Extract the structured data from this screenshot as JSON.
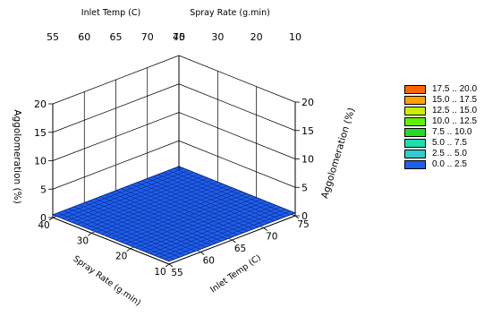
{
  "chart_data": {
    "type": "surface3d",
    "title": "",
    "zlabel": "Aggolomeration (%)",
    "x_axis": {
      "label": "Inlet Temp (C)",
      "range": [
        55,
        75
      ],
      "ticks": [
        55,
        60,
        65,
        70,
        75
      ],
      "tick_labels_top": [
        "55",
        "60",
        "65",
        "70",
        "75"
      ],
      "tick_labels_bottom": [
        "55",
        "60",
        "65",
        "70",
        "75"
      ]
    },
    "y_axis": {
      "label": "Spray Rate (g/min)",
      "top_label": "Spray Rate (g.min)",
      "bottom_label": "Spray Rate (g.min)",
      "range": [
        10,
        40
      ],
      "ticks": [
        10,
        20,
        30,
        40
      ],
      "tick_labels_top": [
        "40",
        "30",
        "20",
        "10"
      ],
      "tick_labels_bottom": [
        "40",
        "30",
        "20",
        "10"
      ]
    },
    "z_axis": {
      "range": [
        0,
        20
      ],
      "ticks": [
        0,
        5,
        10,
        15,
        20
      ],
      "tick_labels": [
        "0",
        "5",
        "10",
        "15",
        "20"
      ]
    },
    "surface": {
      "x_values": [
        55,
        75
      ],
      "y_values": [
        10,
        40
      ],
      "z_values": [
        [
          0.5,
          0.5
        ],
        [
          0.5,
          0.5
        ]
      ],
      "mesh_divisions": 24
    },
    "legend": {
      "placement": "right",
      "items": [
        {
          "label": "17.5 .. 20.0",
          "color": "#ff6600"
        },
        {
          "label": "15.0 .. 17.5",
          "color": "#ffa000"
        },
        {
          "label": "12.5 .. 15.0",
          "color": "#ccee00"
        },
        {
          "label": "10.0 .. 12.5",
          "color": "#66ee00"
        },
        {
          "label": "7.5 .. 10.0",
          "color": "#22dd22"
        },
        {
          "label": "5.0 .. 7.5",
          "color": "#22ddaa"
        },
        {
          "label": "2.5 .. 5.0",
          "color": "#33cccc"
        },
        {
          "label": "0.0 .. 2.5",
          "color": "#1e60e8"
        }
      ]
    },
    "grid": true
  },
  "colors": {
    "surface_fill": "#1e60e8",
    "surface_mesh": "#0a1a80",
    "grid": "#000000"
  }
}
